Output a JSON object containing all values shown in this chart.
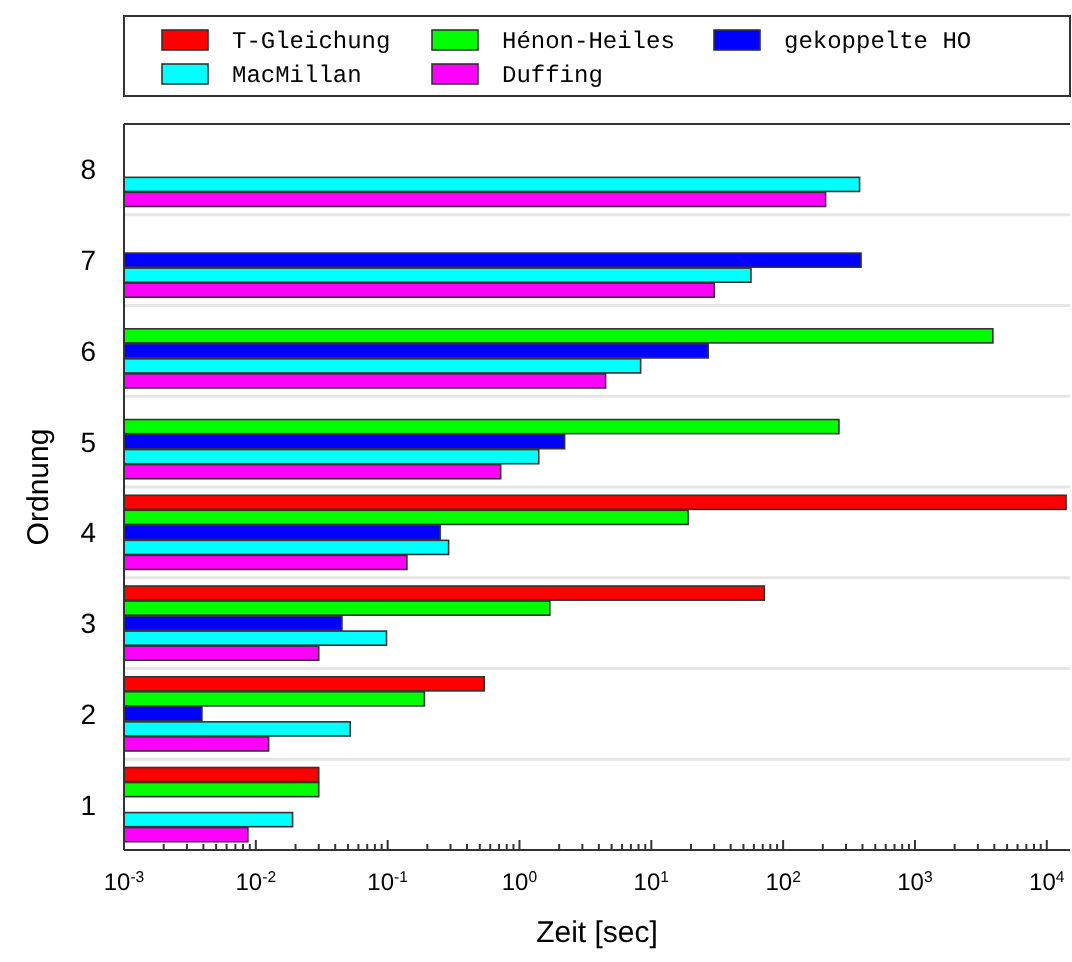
{
  "chart_data": {
    "type": "bar",
    "orientation": "horizontal",
    "xlabel": "Zeit [sec]",
    "ylabel": "Ordnung",
    "categories": [
      "8",
      "7",
      "6",
      "5",
      "4",
      "3",
      "2",
      "1"
    ],
    "log": "x",
    "xlim": [
      0.001,
      15000
    ],
    "xticks": [
      {
        "value": 0.001,
        "label": "10$^{-3}$"
      },
      {
        "value": 0.01,
        "label": "10$^{-2}$"
      },
      {
        "value": 0.1,
        "label": "10$^{-1}$"
      },
      {
        "value": 1,
        "label": "10$^{0}$"
      },
      {
        "value": 10,
        "label": "10$^{1}$"
      },
      {
        "value": 100,
        "label": "10$^{2}$"
      },
      {
        "value": 1000,
        "label": "10$^{3}$"
      },
      {
        "value": 10000,
        "label": "10$^{4}$"
      },
      {
        "value": 0.002,
        "label": null
      },
      {
        "value": 0.003,
        "label": null
      },
      {
        "value": 0.004,
        "label": null
      },
      {
        "value": 0.005,
        "label": null
      },
      {
        "value": 0.006,
        "label": null
      },
      {
        "value": 0.007,
        "label": null
      },
      {
        "value": 0.008,
        "label": null
      },
      {
        "value": 0.009,
        "label": null
      },
      {
        "value": 0.02,
        "label": null
      },
      {
        "value": 0.03,
        "label": null
      },
      {
        "value": 0.04,
        "label": null
      },
      {
        "value": 0.05,
        "label": null
      },
      {
        "value": 0.06,
        "label": null
      },
      {
        "value": 0.07,
        "label": null
      },
      {
        "value": 0.08,
        "label": null
      },
      {
        "value": 0.09,
        "label": null
      },
      {
        "value": 0.2,
        "label": null
      },
      {
        "value": 0.3,
        "label": null
      },
      {
        "value": 0.4,
        "label": null
      },
      {
        "value": 0.5,
        "label": null
      },
      {
        "value": 0.6,
        "label": null
      },
      {
        "value": 0.7,
        "label": null
      },
      {
        "value": 0.8,
        "label": null
      },
      {
        "value": 0.9,
        "label": null
      },
      {
        "value": 2,
        "label": null
      },
      {
        "value": 3,
        "label": null
      },
      {
        "value": 4,
        "label": null
      },
      {
        "value": 5,
        "label": null
      },
      {
        "value": 6,
        "label": null
      },
      {
        "value": 7,
        "label": null
      },
      {
        "value": 8,
        "label": null
      },
      {
        "value": 9,
        "label": null
      },
      {
        "value": 20,
        "label": null
      },
      {
        "value": 30,
        "label": null
      },
      {
        "value": 40,
        "label": null
      },
      {
        "value": 50,
        "label": null
      },
      {
        "value": 60,
        "label": null
      },
      {
        "value": 70,
        "label": null
      },
      {
        "value": 80,
        "label": null
      },
      {
        "value": 90,
        "label": null
      },
      {
        "value": 200,
        "label": null
      },
      {
        "value": 300,
        "label": null
      },
      {
        "value": 400,
        "label": null
      },
      {
        "value": 500,
        "label": null
      },
      {
        "value": 600,
        "label": null
      },
      {
        "value": 700,
        "label": null
      },
      {
        "value": 800,
        "label": null
      },
      {
        "value": 900,
        "label": null
      },
      {
        "value": 2000,
        "label": null
      },
      {
        "value": 3000,
        "label": null
      },
      {
        "value": 4000,
        "label": null
      },
      {
        "value": 5000,
        "label": null
      },
      {
        "value": 6000,
        "label": null
      },
      {
        "value": 7000,
        "label": null
      },
      {
        "value": 8000,
        "label": null
      },
      {
        "value": 9000,
        "label": null
      }
    ],
    "grid": "y",
    "legend": "top",
    "series": [
      {
        "name": "T-Gleichung",
        "color": "#ff0000",
        "values": [
          null,
          null,
          null,
          null,
          14000,
          72,
          0.54,
          0.03
        ]
      },
      {
        "name": "Hénon-Heiles",
        "color": "#00ff00",
        "values": [
          null,
          null,
          3900,
          265,
          19,
          1.7,
          0.19,
          0.03
        ]
      },
      {
        "name": "gekoppelte HO",
        "color": "#0000ff",
        "values": [
          null,
          390,
          27,
          2.2,
          0.25,
          0.045,
          0.0039,
          null
        ]
      },
      {
        "name": "MacMillan",
        "color": "#00ffff",
        "values": [
          380,
          57,
          8.3,
          1.4,
          0.29,
          0.098,
          0.052,
          0.019
        ]
      },
      {
        "name": "Duffing",
        "color": "#ff00ff",
        "values": [
          210,
          30,
          4.5,
          0.72,
          0.14,
          0.03,
          0.0125,
          0.0087
        ]
      }
    ]
  }
}
